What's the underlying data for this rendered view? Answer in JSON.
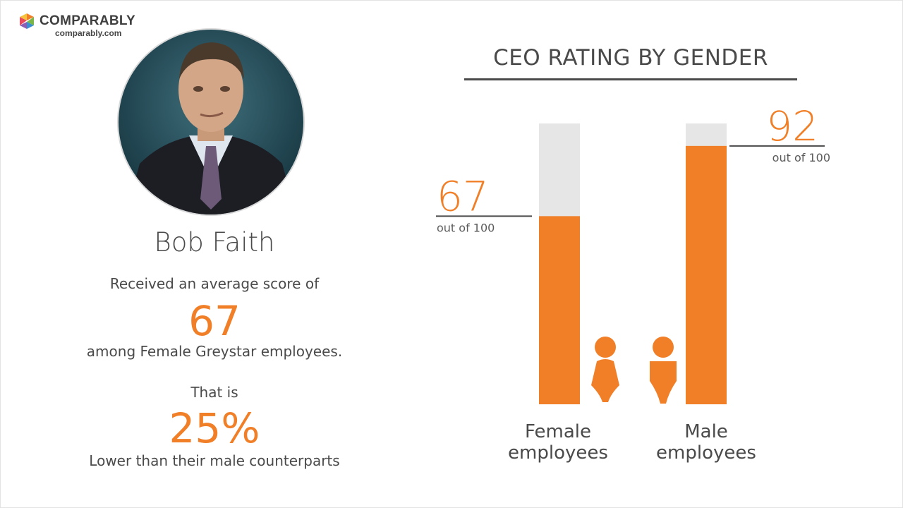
{
  "brand": {
    "name": "COMPARABLY",
    "url": "comparably.com"
  },
  "profile": {
    "name": "Bob Faith",
    "line1": "Received an average score of",
    "score": "67",
    "line2": "among Female Greystar employees.",
    "line3": "That is",
    "percent": "25%",
    "line4": "Lower than their male counterparts"
  },
  "chart_data": {
    "type": "bar",
    "title": "CEO RATING BY GENDER",
    "categories": [
      "Female employees",
      "Male employees"
    ],
    "category_lines": [
      [
        "Female",
        "employees"
      ],
      [
        "Male",
        "employees"
      ]
    ],
    "values": [
      67,
      92
    ],
    "value_labels": [
      "67",
      "92"
    ],
    "sublabel": "out of 100",
    "ylim": [
      0,
      100
    ],
    "colors": {
      "bar": "#f07f28",
      "track": "#e6e6e6",
      "accent": "#f07f28"
    },
    "icons": [
      "female-person-icon",
      "male-person-icon"
    ]
  }
}
